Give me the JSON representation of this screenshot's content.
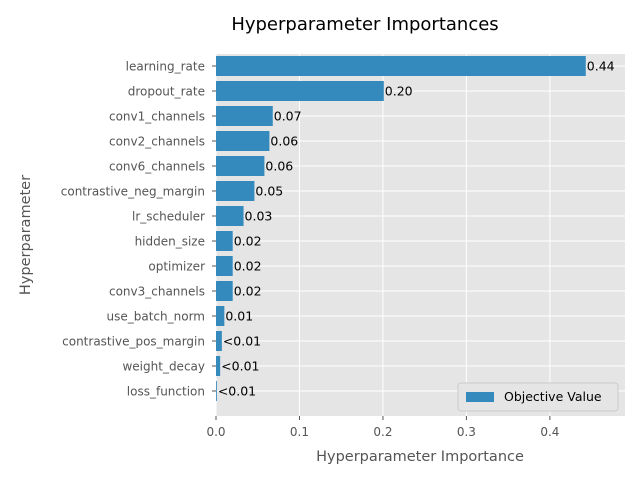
{
  "chart_data": {
    "type": "bar",
    "orientation": "horizontal",
    "title": "Hyperparameter Importances",
    "xlabel": "Hyperparameter Importance",
    "ylabel": "Hyperparameter",
    "xlim": [
      0,
      0.49
    ],
    "xticks": [
      "0.0",
      "0.1",
      "0.2",
      "0.3",
      "0.4"
    ],
    "xtick_values": [
      0,
      0.1,
      0.2,
      0.3,
      0.4
    ],
    "grid": true,
    "legend_position": "lower-right",
    "bar_color": "#348abd",
    "plot_background": "#e5e5e5",
    "categories": [
      "learning_rate",
      "dropout_rate",
      "conv1_channels",
      "conv2_channels",
      "conv6_channels",
      "contrastive_neg_margin",
      "lr_scheduler",
      "hidden_size",
      "optimizer",
      "conv3_channels",
      "use_batch_norm",
      "contrastive_pos_margin",
      "weight_decay",
      "loss_function"
    ],
    "series": [
      {
        "name": "Objective Value",
        "values": [
          0.443,
          0.201,
          0.068,
          0.064,
          0.058,
          0.046,
          0.033,
          0.02,
          0.02,
          0.02,
          0.01,
          0.007,
          0.005,
          0.001
        ],
        "labels": [
          "0.44",
          "0.20",
          "0.07",
          "0.06",
          "0.06",
          "0.05",
          "0.03",
          "0.02",
          "0.02",
          "0.02",
          "0.01",
          "<0.01",
          "<0.01",
          "<0.01"
        ]
      }
    ]
  }
}
